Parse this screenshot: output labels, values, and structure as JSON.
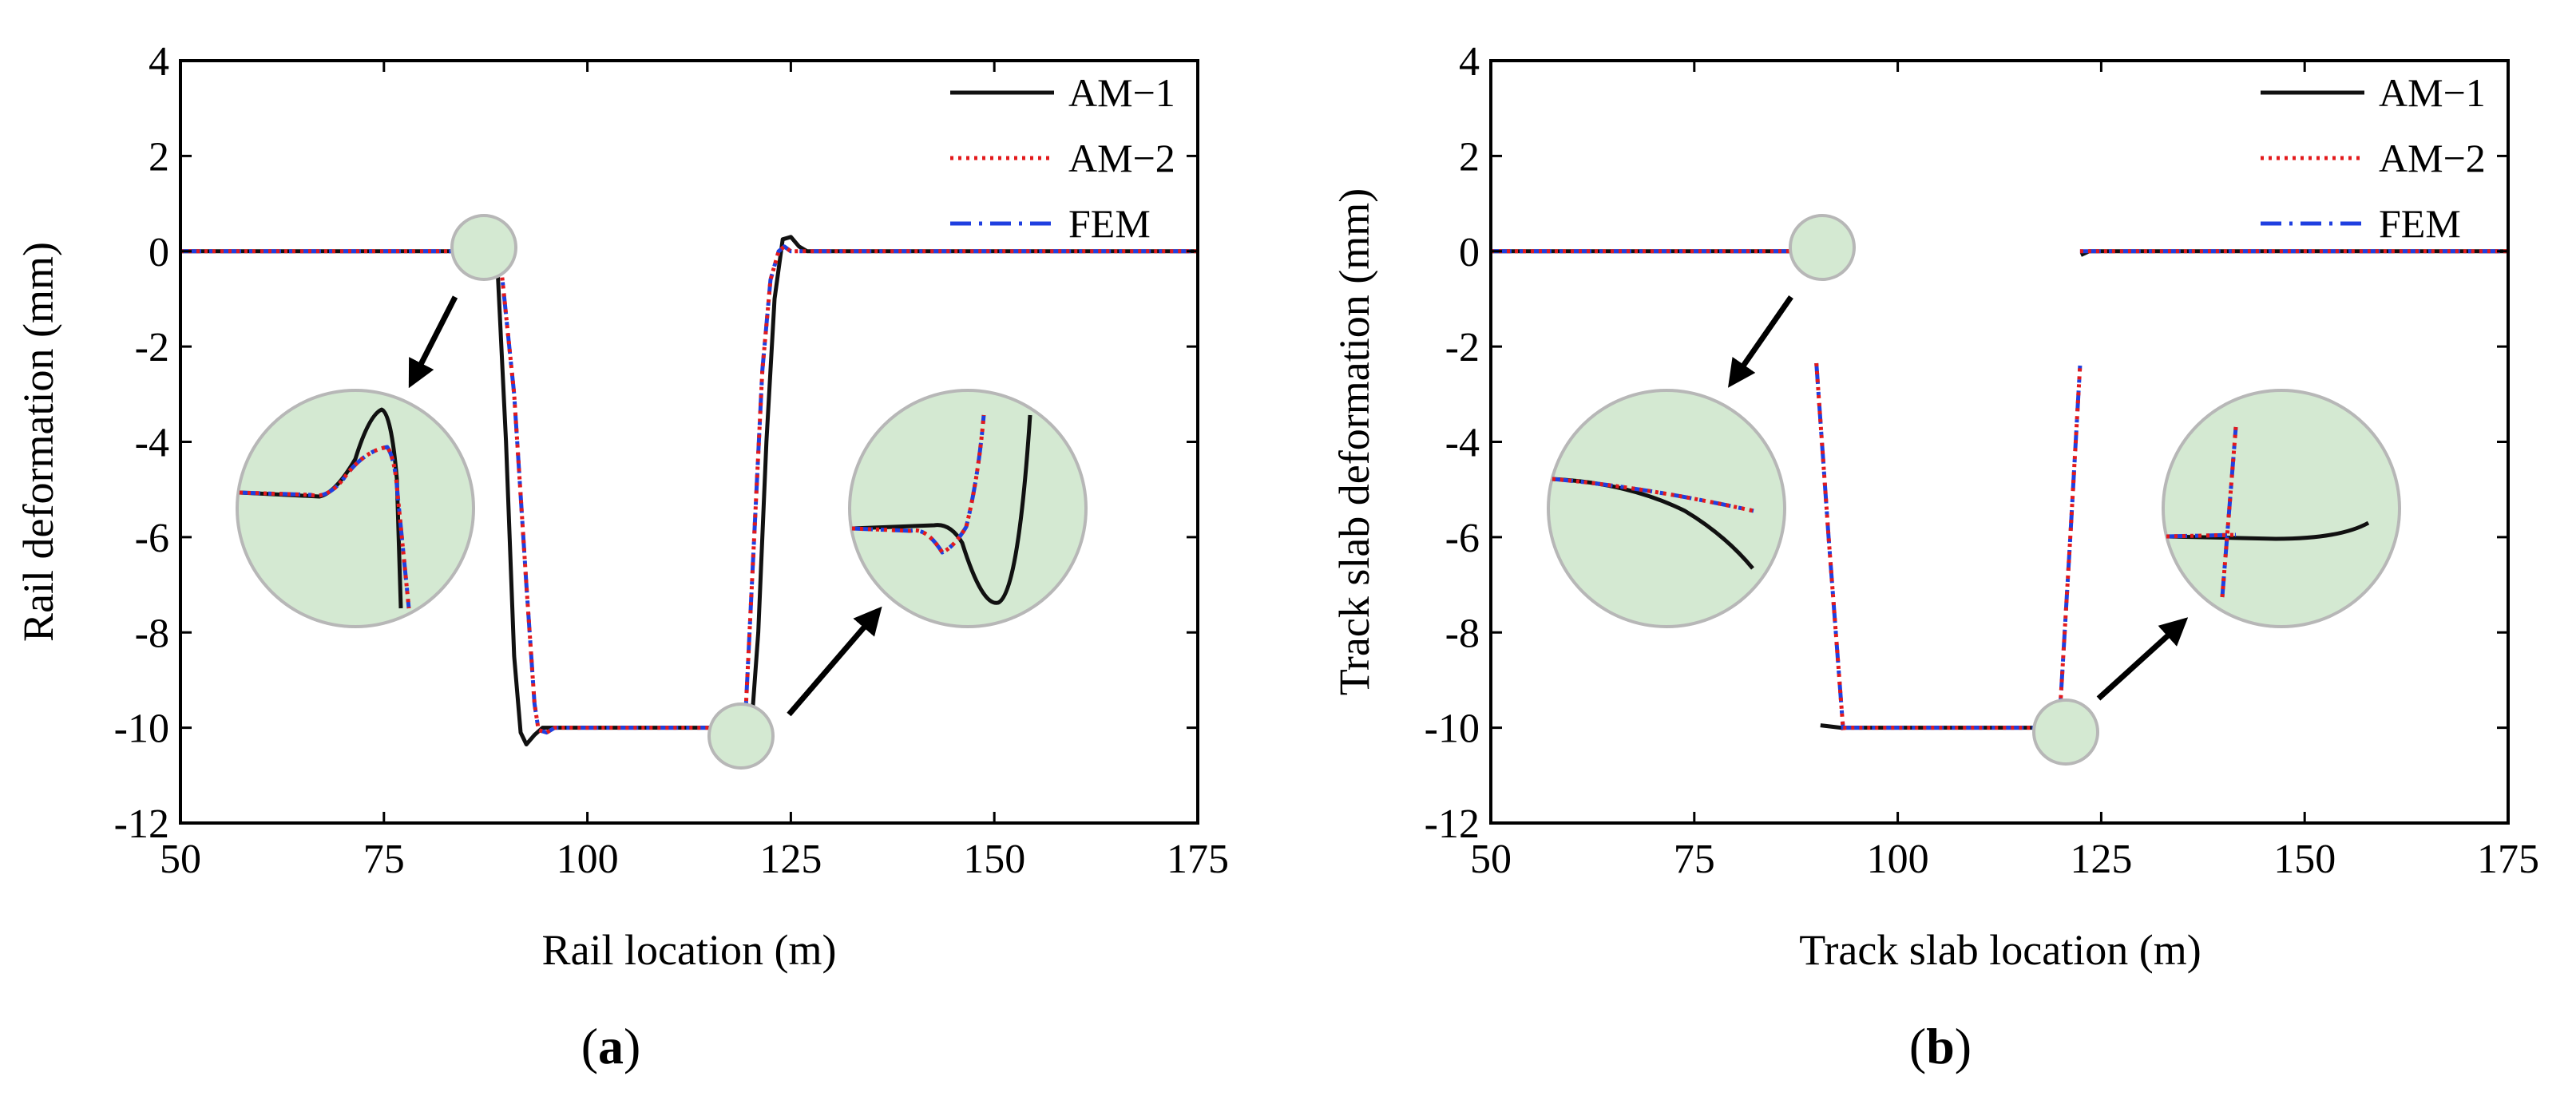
{
  "colors": {
    "am1": "#111111",
    "am2": "#e31a1c",
    "fem": "#1f3fe0",
    "zoom_fill": "#d4e9d2",
    "zoom_stroke": "#b7b7b7"
  },
  "chart_data": [
    {
      "type": "line",
      "panel_label_open": "(",
      "panel_label_letter": "a",
      "panel_label_close": ")",
      "xlabel": "Rail location (m)",
      "ylabel": "Rail deformation (mm)",
      "xlim": [
        50,
        175
      ],
      "ylim": [
        -12,
        4
      ],
      "xticks": [
        "50",
        "75",
        "100",
        "125",
        "150",
        "175"
      ],
      "yticks": [
        "4",
        "2",
        "0",
        "-2",
        "-4",
        "-6",
        "-8",
        "-10",
        "-12"
      ],
      "legend_position": "top-right",
      "legend": [
        "AM−1",
        "AM−2",
        "FEM"
      ],
      "series": [
        {
          "name": "AM−1",
          "style": "solid",
          "points": [
            [
              50,
              0
            ],
            [
              84,
              0
            ],
            [
              85.5,
              0.05
            ],
            [
              87,
              0.25
            ],
            [
              88,
              0.3
            ],
            [
              89,
              -0.5
            ],
            [
              90,
              -4
            ],
            [
              91,
              -8.5
            ],
            [
              91.8,
              -10.1
            ],
            [
              92.5,
              -10.35
            ],
            [
              93.5,
              -10.15
            ],
            [
              94.5,
              -10
            ],
            [
              118,
              -10
            ],
            [
              119,
              -10.1
            ],
            [
              120,
              -10.35
            ],
            [
              121,
              -8
            ],
            [
              122,
              -4
            ],
            [
              123,
              -1
            ],
            [
              124,
              0.25
            ],
            [
              125,
              0.3
            ],
            [
              126,
              0.1
            ],
            [
              127,
              0
            ],
            [
              175,
              0
            ]
          ]
        },
        {
          "name": "AM−2",
          "style": "dotted",
          "points": [
            [
              50,
              0
            ],
            [
              85,
              0
            ],
            [
              86.5,
              0.08
            ],
            [
              88,
              0.1
            ],
            [
              89.5,
              -0.5
            ],
            [
              91,
              -3
            ],
            [
              92.5,
              -7
            ],
            [
              93.5,
              -9.5
            ],
            [
              94,
              -10.05
            ],
            [
              95,
              -10.1
            ],
            [
              96,
              -10
            ],
            [
              117,
              -10
            ],
            [
              118.3,
              -10.08
            ],
            [
              119.5,
              -9.5
            ],
            [
              120.5,
              -6
            ],
            [
              121.5,
              -2.5
            ],
            [
              122.5,
              -0.6
            ],
            [
              123.5,
              0
            ],
            [
              124.2,
              0.1
            ],
            [
              125,
              0
            ],
            [
              175,
              0
            ]
          ]
        },
        {
          "name": "FEM",
          "style": "dashdot",
          "points": [
            [
              50,
              0
            ],
            [
              85,
              0
            ],
            [
              86.5,
              0.08
            ],
            [
              88,
              0.1
            ],
            [
              89.5,
              -0.5
            ],
            [
              91,
              -3
            ],
            [
              92.5,
              -7
            ],
            [
              93.5,
              -9.5
            ],
            [
              94,
              -10.05
            ],
            [
              95,
              -10.1
            ],
            [
              96,
              -10
            ],
            [
              117,
              -10
            ],
            [
              118.3,
              -10.08
            ],
            [
              119.5,
              -9.5
            ],
            [
              120.5,
              -6
            ],
            [
              121.5,
              -2.5
            ],
            [
              122.5,
              -0.6
            ],
            [
              123.5,
              0
            ],
            [
              124.2,
              0.1
            ],
            [
              125,
              0
            ],
            [
              175,
              0
            ]
          ]
        }
      ]
    },
    {
      "type": "line",
      "panel_label_open": "(",
      "panel_label_letter": "b",
      "panel_label_close": ")",
      "xlabel": "Track slab location (m)",
      "ylabel": "Track slab deformation (mm)",
      "xlim": [
        50,
        175
      ],
      "ylim": [
        -12,
        4
      ],
      "xticks": [
        "50",
        "75",
        "100",
        "125",
        "150",
        "175"
      ],
      "yticks": [
        "4",
        "2",
        "0",
        "-2",
        "-4",
        "-6",
        "-8",
        "-10",
        "-12"
      ],
      "legend_position": "top-right",
      "legend": [
        "AM−1",
        "AM−2",
        "FEM"
      ],
      "series": [
        {
          "name": "AM−1",
          "style": "solid",
          "segments": [
            [
              [
                50,
                0
              ],
              [
                89,
                0
              ],
              [
                90,
                -0.02
              ],
              [
                90.5,
                -0.06
              ]
            ],
            [
              [
                90.5,
                -9.95
              ],
              [
                93,
                -10
              ],
              [
                120,
                -10
              ],
              [
                121.5,
                -9.97
              ]
            ],
            [
              [
                122.5,
                -0.08
              ],
              [
                123.5,
                0
              ],
              [
                175,
                0
              ]
            ]
          ]
        },
        {
          "name": "AM−2",
          "style": "dotted",
          "segments": [
            [
              [
                50,
                0
              ],
              [
                90,
                0
              ]
            ],
            [
              [
                90,
                -2.35
              ],
              [
                91.5,
                -6
              ],
              [
                93.3,
                -10.05
              ]
            ],
            [
              [
                93.3,
                -10
              ],
              [
                119.8,
                -10
              ]
            ],
            [
              [
                119.8,
                -10.05
              ],
              [
                121.2,
                -6
              ],
              [
                122.4,
                -2.4
              ]
            ],
            [
              [
                122.4,
                0
              ],
              [
                175,
                0
              ]
            ]
          ]
        },
        {
          "name": "FEM",
          "style": "dashdot",
          "segments": [
            [
              [
                50,
                0
              ],
              [
                90,
                0
              ]
            ],
            [
              [
                90,
                -2.35
              ],
              [
                91.5,
                -6
              ],
              [
                93.3,
                -10.05
              ]
            ],
            [
              [
                93.3,
                -10
              ],
              [
                119.8,
                -10
              ]
            ],
            [
              [
                119.8,
                -10.05
              ],
              [
                121.2,
                -6
              ],
              [
                122.4,
                -2.4
              ]
            ],
            [
              [
                122.4,
                0
              ],
              [
                175,
                0
              ]
            ]
          ]
        }
      ]
    }
  ]
}
